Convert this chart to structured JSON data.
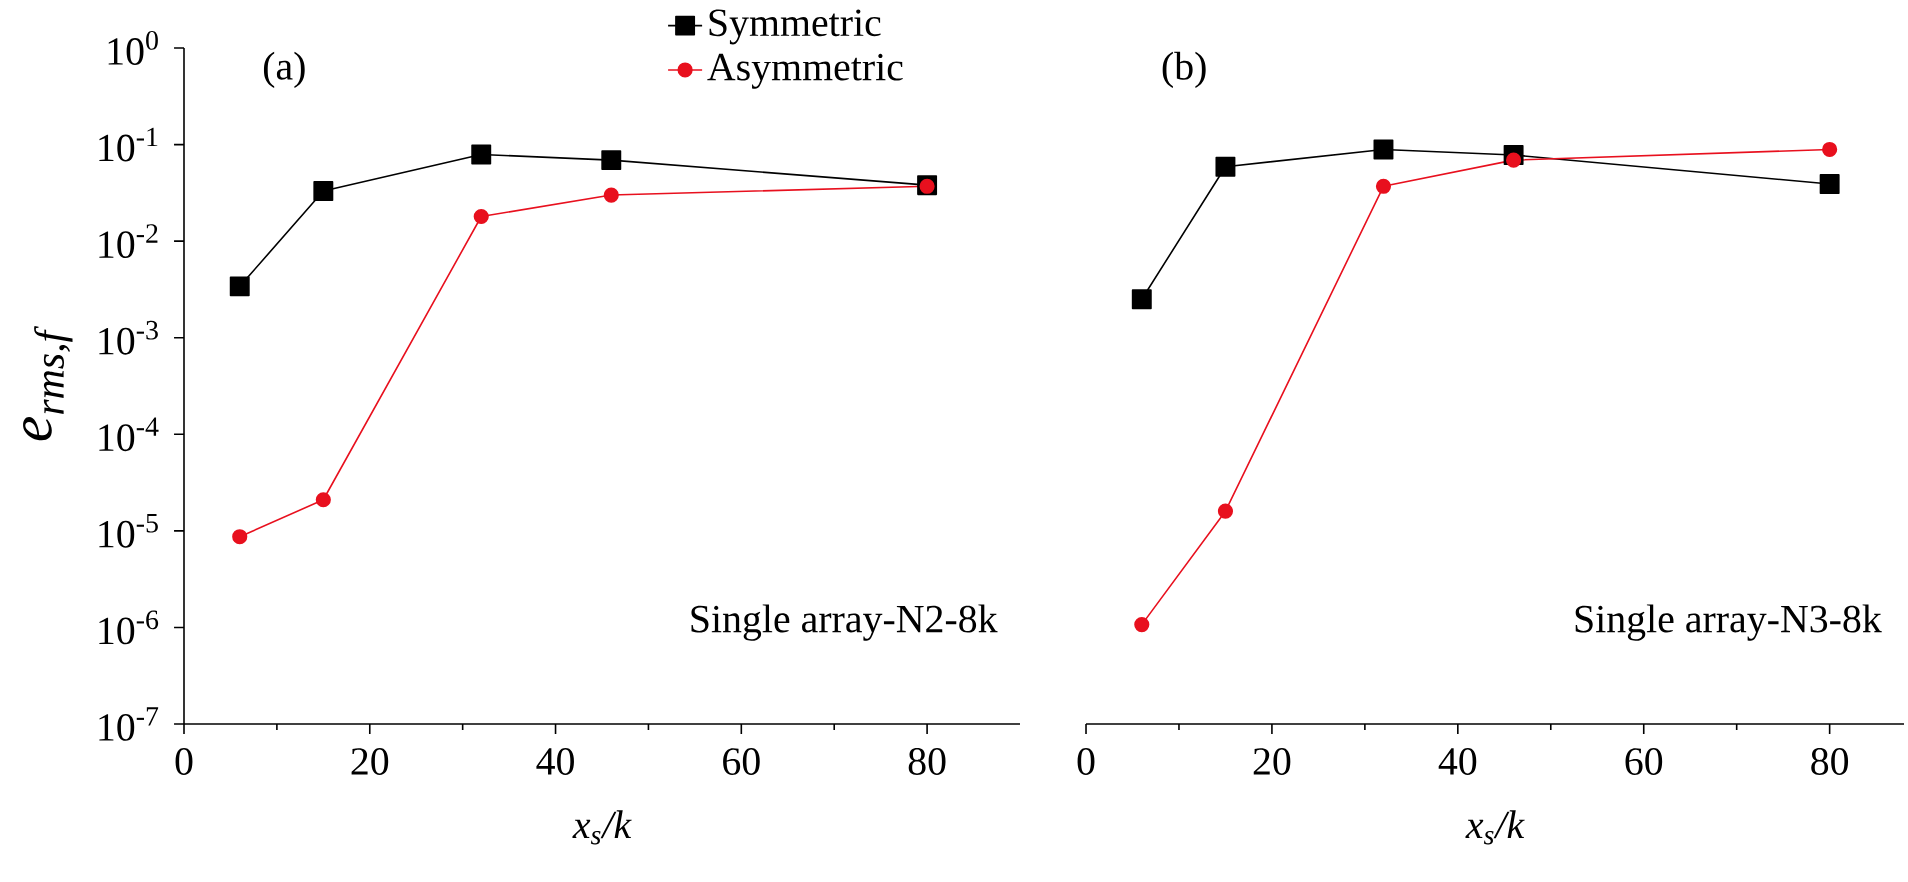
{
  "chart_data": [
    {
      "type": "line",
      "title": "(a)",
      "xlabel": "x$_{s}$/k",
      "ylabel": "e$_{rms,f}$",
      "log": "y",
      "legend": "top right",
      "xlim": [
        0,
        90
      ],
      "xticks": [
        0,
        20,
        40,
        60,
        80
      ],
      "ylim": [
        1e-07,
        1
      ],
      "yticks": [
        {
          "value": 1e-07,
          "label": "10$^{-7}$"
        },
        {
          "value": 1e-06,
          "label": "10$^{-6}$"
        },
        {
          "value": 1e-05,
          "label": "10$^{-5}$"
        },
        {
          "value": 0.0001,
          "label": "10$^{-4}$"
        },
        {
          "value": 0.001,
          "label": "10$^{-3}$"
        },
        {
          "value": 0.01,
          "label": "10$^{-2}$"
        },
        {
          "value": 0.1,
          "label": "10$^{-1}$"
        },
        {
          "value": 1,
          "label": "10$^{0}$"
        }
      ],
      "annotations": [
        "Single array-N2-8k"
      ],
      "series": [
        {
          "name": "Symmetric",
          "color": "#000000",
          "marker": "square",
          "x": [
            6,
            15,
            32,
            46,
            80
          ],
          "values": [
            0.0034,
            0.033,
            0.079,
            0.069,
            0.038
          ]
        },
        {
          "name": "Asymmetric",
          "color": "#e8101e",
          "marker": "circle",
          "x": [
            6,
            15,
            32,
            46,
            80
          ],
          "values": [
            8.7e-06,
            2.1e-05,
            0.018,
            0.03,
            0.037
          ]
        }
      ]
    },
    {
      "type": "line",
      "title": "(b)",
      "xlabel": "x$_{s}$/k",
      "log": "y",
      "tick_labels": "x",
      "xlim": [
        0,
        88
      ],
      "xticks": [
        0,
        20,
        40,
        60,
        80
      ],
      "ylim": [
        1e-07,
        1
      ],
      "annotations": [
        "Single array-N3-8k"
      ],
      "series": [
        {
          "color": "#000000",
          "marker": "square",
          "x": [
            6,
            15,
            32,
            46,
            80
          ],
          "values": [
            0.0025,
            0.059,
            0.089,
            0.078,
            0.039
          ]
        },
        {
          "color": "#e8101e",
          "marker": "circle",
          "x": [
            6,
            15,
            32,
            46,
            80
          ],
          "values": [
            1.07e-06,
            1.6e-05,
            0.037,
            0.069,
            0.089
          ]
        }
      ]
    }
  ]
}
